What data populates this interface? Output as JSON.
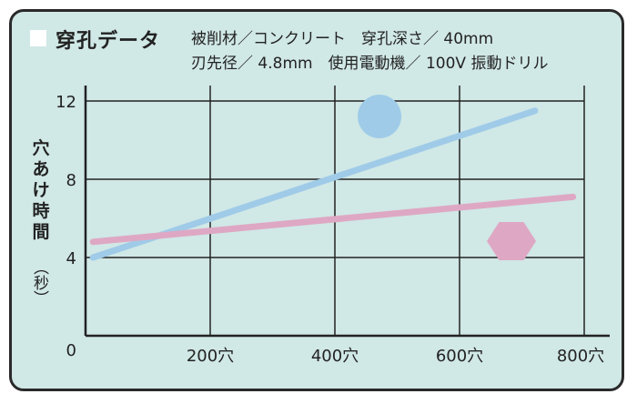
{
  "header": {
    "title": "穿孔データ",
    "info_line1": "被削材／コンクリート　穿孔深さ／ 40mm",
    "info_line2": "刃先径／ 4.8mm　使用電動機／ 100V 振動ドリル"
  },
  "chart_data": {
    "type": "line",
    "title": "穿孔データ",
    "xlabel": "",
    "ylabel": "穴あけ時間",
    "yunit": "（秒）",
    "xlim": [
      0,
      800
    ],
    "ylim": [
      0,
      12
    ],
    "xticks": [
      {
        "v": 200,
        "label": "200穴"
      },
      {
        "v": 400,
        "label": "400穴"
      },
      {
        "v": 600,
        "label": "600穴"
      },
      {
        "v": 800,
        "label": "800穴"
      }
    ],
    "yticks": [
      {
        "v": 0,
        "label": "0"
      },
      {
        "v": 4,
        "label": "4"
      },
      {
        "v": 8,
        "label": "8"
      },
      {
        "v": 12,
        "label": "12"
      }
    ],
    "grid": true,
    "series": [
      {
        "name": "circle-series",
        "marker": "circle",
        "color": "#9fcbe8",
        "x": [
          12,
          721
        ],
        "y": [
          4.0,
          11.5
        ]
      },
      {
        "name": "hexagon-series",
        "marker": "hexagon",
        "color": "#dea8c4",
        "x": [
          12,
          782
        ],
        "y": [
          4.8,
          7.1
        ]
      }
    ],
    "legend_markers": [
      {
        "marker": "circle",
        "color": "#9fcbe8"
      },
      {
        "marker": "hexagon",
        "color": "#dea8c4"
      }
    ]
  }
}
